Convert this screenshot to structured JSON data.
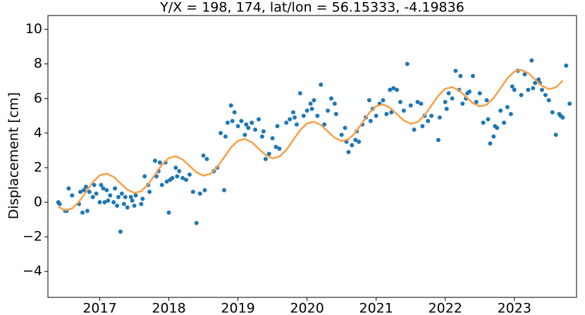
{
  "chart_data": {
    "type": "scatter",
    "title": "Y/X = 198, 174, lat/lon = 56.15333, -4.19836",
    "y_label": "Displacement [cm]",
    "xlim": [
      2016.25,
      2023.9
    ],
    "ylim": [
      -5.5,
      10.8
    ],
    "xticks": [
      2017,
      2018,
      2019,
      2020,
      2021,
      2022,
      2023
    ],
    "yticks": [
      {
        "value": -4,
        "label": "−4"
      },
      {
        "value": -2,
        "label": "−2"
      },
      0,
      2,
      4,
      6,
      8,
      10
    ],
    "grid": false,
    "series": [
      {
        "type": "scatter",
        "color": "#1f77b4",
        "x": [
          2016.4,
          2016.42,
          2016.5,
          2016.52,
          2016.55,
          2016.6,
          2016.7,
          2016.72,
          2016.75,
          2016.77,
          2016.8,
          2016.82,
          2016.85,
          2016.9,
          2016.92,
          2016.95,
          2017.0,
          2017.02,
          2017.05,
          2017.07,
          2017.1,
          2017.12,
          2017.15,
          2017.2,
          2017.22,
          2017.25,
          2017.27,
          2017.3,
          2017.32,
          2017.35,
          2017.37,
          2017.4,
          2017.45,
          2017.47,
          2017.5,
          2017.52,
          2017.6,
          2017.62,
          2017.65,
          2017.7,
          2017.72,
          2017.8,
          2017.82,
          2017.85,
          2017.87,
          2017.9,
          2017.95,
          2017.97,
          2018.0,
          2018.02,
          2018.05,
          2018.1,
          2018.12,
          2018.15,
          2018.2,
          2018.25,
          2018.3,
          2018.35,
          2018.4,
          2018.45,
          2018.5,
          2018.52,
          2018.55,
          2018.65,
          2018.7,
          2018.75,
          2018.8,
          2018.82,
          2018.85,
          2018.9,
          2018.92,
          2018.95,
          2019.0,
          2019.05,
          2019.1,
          2019.12,
          2019.15,
          2019.2,
          2019.25,
          2019.3,
          2019.35,
          2019.37,
          2019.4,
          2019.45,
          2019.5,
          2019.55,
          2019.57,
          2019.6,
          2019.7,
          2019.75,
          2019.8,
          2019.82,
          2019.85,
          2019.9,
          2019.95,
          2020.0,
          2020.05,
          2020.07,
          2020.1,
          2020.15,
          2020.2,
          2020.25,
          2020.3,
          2020.35,
          2020.4,
          2020.42,
          2020.5,
          2020.55,
          2020.57,
          2020.6,
          2020.65,
          2020.7,
          2020.72,
          2020.75,
          2020.8,
          2020.85,
          2020.9,
          2020.92,
          2020.95,
          2021.0,
          2021.05,
          2021.1,
          2021.15,
          2021.2,
          2021.22,
          2021.25,
          2021.3,
          2021.35,
          2021.4,
          2021.45,
          2021.5,
          2021.55,
          2021.6,
          2021.65,
          2021.67,
          2021.7,
          2021.75,
          2021.8,
          2021.9,
          2021.92,
          2022.0,
          2022.02,
          2022.05,
          2022.1,
          2022.15,
          2022.2,
          2022.22,
          2022.25,
          2022.3,
          2022.32,
          2022.35,
          2022.4,
          2022.45,
          2022.5,
          2022.55,
          2022.6,
          2022.62,
          2022.65,
          2022.7,
          2022.72,
          2022.75,
          2022.8,
          2022.85,
          2022.9,
          2022.95,
          2022.97,
          2023.0,
          2023.05,
          2023.1,
          2023.15,
          2023.2,
          2023.25,
          2023.27,
          2023.3,
          2023.35,
          2023.37,
          2023.4,
          2023.45,
          2023.5,
          2023.55,
          2023.6,
          2023.65,
          2023.67,
          2023.7,
          2023.75,
          2023.8
        ],
        "values": [
          0.0,
          -0.1,
          -0.5,
          -0.5,
          0.8,
          0.4,
          -0.1,
          0.6,
          -0.6,
          0.7,
          0.9,
          -0.5,
          0.6,
          0.3,
          1.0,
          0.5,
          0.0,
          1.0,
          0.8,
          0.0,
          0.7,
          0.1,
          0.4,
          0.0,
          0.8,
          -0.2,
          0.3,
          -1.7,
          0.5,
          -0.1,
          0.3,
          -0.3,
          0.3,
          0.1,
          -0.2,
          0.4,
          -0.1,
          0.2,
          1.5,
          1.0,
          0.6,
          2.4,
          1.5,
          1.8,
          2.3,
          1.0,
          2.3,
          1.2,
          -0.6,
          1.3,
          1.4,
          2.0,
          1.5,
          1.8,
          1.4,
          1.3,
          1.6,
          0.6,
          -1.2,
          0.5,
          2.7,
          0.7,
          2.5,
          1.8,
          2.0,
          4.0,
          0.7,
          3.8,
          4.6,
          5.6,
          4.7,
          5.2,
          4.4,
          4.7,
          3.9,
          4.5,
          4.3,
          4.6,
          4.2,
          4.8,
          3.8,
          4.1,
          2.5,
          2.8,
          3.7,
          3.2,
          4.4,
          3.1,
          4.6,
          4.8,
          5.2,
          4.9,
          4.5,
          6.3,
          5.0,
          5.3,
          5.7,
          5.4,
          5.9,
          5.0,
          6.8,
          4.5,
          5.3,
          6.0,
          5.7,
          5.1,
          3.9,
          4.3,
          3.5,
          2.9,
          3.3,
          3.6,
          4.1,
          3.5,
          4.5,
          4.9,
          5.9,
          4.7,
          5.4,
          5.0,
          5.7,
          5.9,
          5.1,
          6.5,
          5.2,
          6.6,
          6.5,
          5.8,
          5.3,
          8.0,
          5.6,
          4.2,
          5.8,
          5.7,
          4.4,
          5.0,
          4.7,
          5.0,
          3.6,
          4.9,
          5.8,
          5.4,
          6.3,
          6.0,
          7.6,
          6.5,
          7.3,
          5.7,
          6.0,
          6.3,
          6.4,
          7.3,
          5.8,
          6.3,
          4.6,
          5.9,
          4.8,
          3.4,
          3.8,
          4.4,
          4.3,
          5.3,
          4.6,
          5.5,
          5.1,
          6.7,
          6.5,
          7.6,
          6.2,
          7.4,
          6.5,
          8.2,
          6.6,
          6.9,
          7.1,
          6.9,
          6.5,
          6.2,
          5.9,
          5.2,
          3.9,
          5.1,
          5.0,
          4.9,
          7.9,
          5.7
        ]
      },
      {
        "type": "line",
        "color": "#f7a048",
        "x": [
          2016.4,
          2016.5,
          2016.6,
          2016.7,
          2016.8,
          2016.9,
          2017.0,
          2017.1,
          2017.2,
          2017.3,
          2017.4,
          2017.5,
          2017.6,
          2017.7,
          2017.8,
          2017.9,
          2018.0,
          2018.1,
          2018.2,
          2018.3,
          2018.4,
          2018.5,
          2018.6,
          2018.7,
          2018.8,
          2018.9,
          2019.0,
          2019.1,
          2019.2,
          2019.3,
          2019.4,
          2019.5,
          2019.6,
          2019.7,
          2019.8,
          2019.9,
          2020.0,
          2020.1,
          2020.2,
          2020.3,
          2020.4,
          2020.5,
          2020.6,
          2020.7,
          2020.8,
          2020.9,
          2021.0,
          2021.1,
          2021.2,
          2021.3,
          2021.4,
          2021.5,
          2021.6,
          2021.7,
          2021.8,
          2021.9,
          2022.0,
          2022.1,
          2022.2,
          2022.3,
          2022.4,
          2022.5,
          2022.6,
          2022.7,
          2022.8,
          2022.9,
          2023.0,
          2023.1,
          2023.2,
          2023.3,
          2023.4,
          2023.5,
          2023.6,
          2023.7
        ],
        "values": [
          -0.27,
          -0.46,
          -0.36,
          0.03,
          0.6,
          1.17,
          1.56,
          1.66,
          1.47,
          1.1,
          0.73,
          0.54,
          0.64,
          1.03,
          1.6,
          2.17,
          2.56,
          2.66,
          2.47,
          2.1,
          1.73,
          1.54,
          1.64,
          2.03,
          2.6,
          3.17,
          3.56,
          3.66,
          3.47,
          3.1,
          2.73,
          2.54,
          2.64,
          3.03,
          3.6,
          4.17,
          4.56,
          4.66,
          4.47,
          4.1,
          3.73,
          3.54,
          3.64,
          4.03,
          4.6,
          5.17,
          5.56,
          5.66,
          5.47,
          5.1,
          4.73,
          4.54,
          4.64,
          5.03,
          5.6,
          6.17,
          6.56,
          6.66,
          6.47,
          6.1,
          5.73,
          5.54,
          5.64,
          6.03,
          6.6,
          7.17,
          7.56,
          7.66,
          7.47,
          7.1,
          6.73,
          6.54,
          6.64,
          7.03
        ]
      }
    ]
  }
}
